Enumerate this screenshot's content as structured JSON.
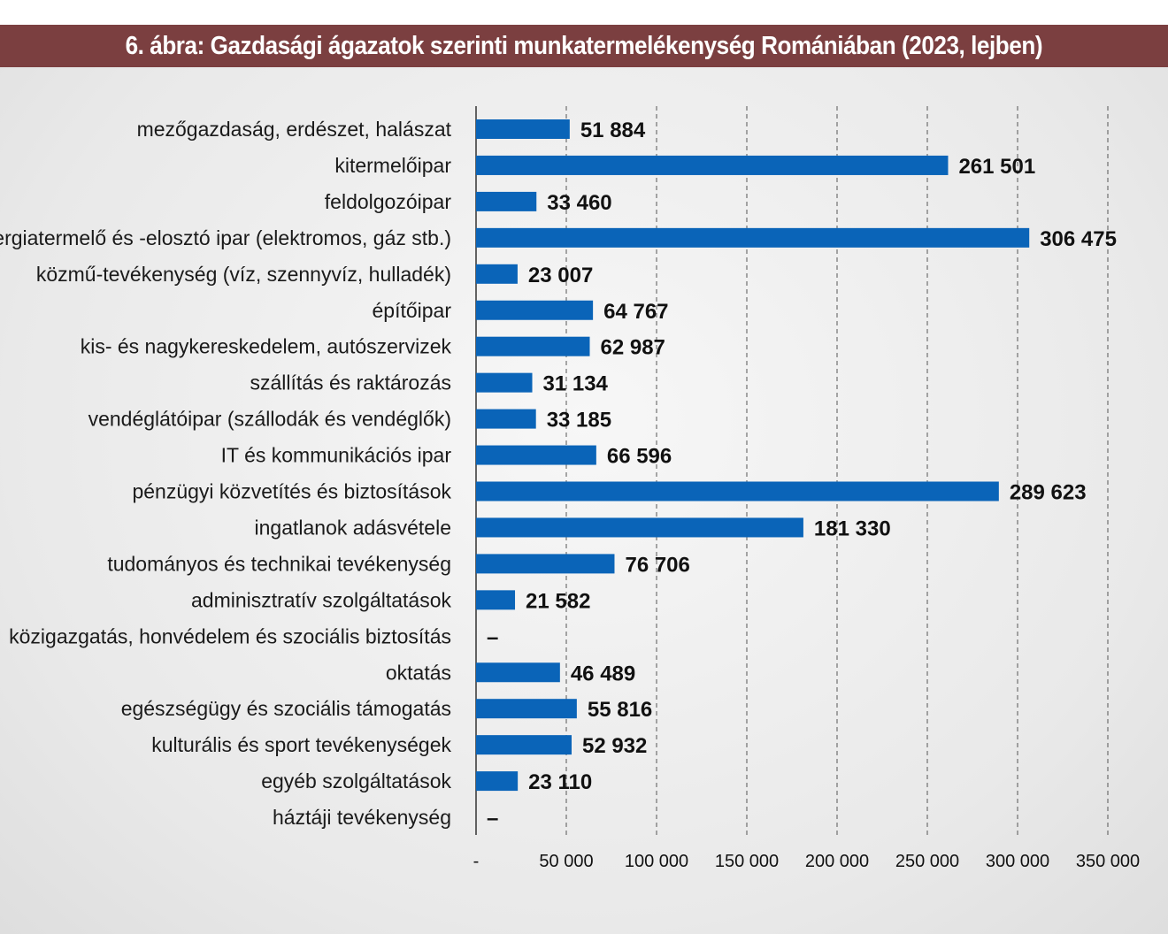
{
  "title": "6. ábra: Gazdasági ágazatok szerinti munkatermelékenység Romániában (2023, lejben)",
  "chart_data": {
    "type": "bar",
    "orientation": "horizontal",
    "title": "6. ábra: Gazdasági ágazatok szerinti munkatermelékenység Romániában (2023, lejben)",
    "categories": [
      "mezőgazdaság, erdészet, halászat",
      "kitermelőipar",
      "feldolgozóipar",
      "energiatermelő és -elosztó ipar (elektromos, gáz stb.)",
      "közmű-tevékenység (víz, szennyvíz, hulladék)",
      "építőipar",
      "kis- és nagykereskedelem, autószervizek",
      "szállítás és raktározás",
      "vendéglátóipar (szállodák és vendéglők)",
      "IT és kommunikációs ipar",
      "pénzügyi közvetítés és biztosítások",
      "ingatlanok adásvétele",
      "tudományos és technikai tevékenység",
      "adminisztratív szolgáltatások",
      "közigazgatás, honvédelem és szociális biztosítás",
      "oktatás",
      "egészségügy és szociális támogatás",
      "kulturális és sport tevékenységek",
      "egyéb szolgáltatások",
      "háztáji tevékenység"
    ],
    "values": [
      51884,
      261501,
      33460,
      306475,
      23007,
      64767,
      62987,
      31134,
      33185,
      66596,
      289623,
      181330,
      76706,
      21582,
      0,
      46489,
      55816,
      52932,
      23110,
      0
    ],
    "value_labels": [
      "51 884",
      "261 501",
      "33 460",
      "306 475",
      "23 007",
      "64 767",
      "62 987",
      "31 134",
      "33 185",
      "66 596",
      "289 623",
      "181 330",
      "76 706",
      "21 582",
      "–",
      "46 489",
      "55 816",
      "52 932",
      "23 110",
      "–"
    ],
    "xlim": [
      0,
      350000
    ],
    "x_ticks": [
      0,
      50000,
      100000,
      150000,
      200000,
      250000,
      300000,
      350000
    ],
    "x_tick_labels": [
      "-",
      "50 000",
      "100 000",
      "150 000",
      "200 000",
      "250 000",
      "300 000",
      "350 000"
    ],
    "grid": "vertical dashed",
    "bar_color": "#0a64b8",
    "xlabel": "",
    "ylabel": ""
  },
  "colors": {
    "title_bar": "#7b3f40",
    "title_text": "#ffffff"
  }
}
